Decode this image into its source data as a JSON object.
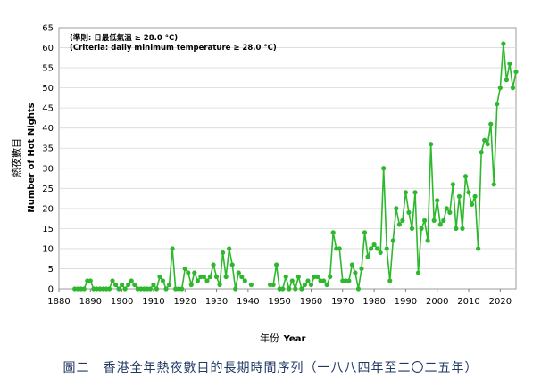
{
  "chart_data": {
    "type": "line",
    "title_zh": "熱夜數目",
    "ylabel": "Number of Hot Nights",
    "xlabel_zh": "年份",
    "xlabel": "Year",
    "xlim": [
      1880,
      2025
    ],
    "ylim": [
      0,
      65
    ],
    "x_ticks": [
      1880,
      1890,
      1900,
      1910,
      1920,
      1930,
      1940,
      1950,
      1960,
      1970,
      1980,
      1990,
      2000,
      2010,
      2020
    ],
    "y_ticks": [
      0,
      5,
      10,
      15,
      20,
      25,
      30,
      35,
      40,
      45,
      50,
      55,
      60,
      65
    ],
    "annotation_zh": "(準則: 日最低氣溫 ≥ 28.0 °C)",
    "annotation_en": "(Criteria: daily minimum temperature ≥ 28.0 °C)",
    "line_color": "#2eb82e",
    "series": [
      {
        "name": "Hot Nights",
        "segments": [
          {
            "x": [
              1885,
              1886,
              1887,
              1888,
              1889,
              1890,
              1891,
              1892,
              1893,
              1894,
              1895,
              1896,
              1897,
              1898,
              1899,
              1900,
              1901,
              1902,
              1903,
              1904,
              1905,
              1906,
              1907,
              1908,
              1909,
              1910,
              1911,
              1912,
              1913,
              1914,
              1915,
              1916,
              1917,
              1918,
              1919,
              1920,
              1921,
              1922,
              1923,
              1924,
              1925,
              1926,
              1927,
              1928,
              1929,
              1930,
              1931,
              1932,
              1933,
              1934,
              1935,
              1936,
              1937,
              1938,
              1939
            ],
            "y": [
              0,
              0,
              0,
              0,
              2,
              2,
              0,
              0,
              0,
              0,
              0,
              0,
              2,
              1,
              0,
              1,
              0,
              1,
              2,
              1,
              0,
              0,
              0,
              0,
              0,
              1,
              0,
              3,
              2,
              0,
              1,
              10,
              0,
              0,
              0,
              5,
              4,
              1,
              4,
              2,
              3,
              3,
              2,
              3,
              6,
              3,
              1,
              9,
              3,
              10,
              6,
              0,
              4,
              3,
              2
            ]
          },
          {
            "x": [
              1941
            ],
            "y": [
              1
            ]
          },
          {
            "x": [
              1947,
              1948,
              1949,
              1950,
              1951,
              1952,
              1953,
              1954,
              1955,
              1956,
              1957,
              1958,
              1959,
              1960,
              1961,
              1962,
              1963,
              1964,
              1965,
              1966,
              1967,
              1968,
              1969,
              1970,
              1971,
              1972,
              1973,
              1974,
              1975,
              1976,
              1977,
              1978,
              1979,
              1980,
              1981,
              1982,
              1983,
              1984,
              1985,
              1986,
              1987,
              1988,
              1989,
              1990,
              1991,
              1992,
              1993,
              1994,
              1995,
              1996,
              1997,
              1998,
              1999,
              2000,
              2001,
              2002,
              2003,
              2004,
              2005,
              2006,
              2007,
              2008,
              2009,
              2010,
              2011,
              2012,
              2013,
              2014,
              2015,
              2016,
              2017,
              2018,
              2019,
              2020,
              2021,
              2022,
              2023,
              2024,
              2025
            ],
            "y": [
              1,
              1,
              6,
              0,
              0,
              3,
              0,
              2,
              0,
              3,
              0,
              1,
              2,
              1,
              3,
              3,
              2,
              2,
              1,
              3,
              14,
              10,
              10,
              2,
              2,
              2,
              6,
              4,
              0,
              5,
              14,
              8,
              10,
              11,
              10,
              9,
              30,
              10,
              2,
              12,
              20,
              16,
              17,
              24,
              19,
              15,
              24,
              4,
              15,
              17,
              12,
              36,
              17,
              22,
              16,
              17,
              20,
              19,
              26,
              15,
              23,
              15,
              28,
              24,
              21,
              23,
              10,
              34,
              37,
              36,
              41,
              26,
              46,
              50,
              61,
              52,
              56,
              50,
              54
            ]
          }
        ]
      }
    ]
  },
  "caption": "圖二　香港全年熱夜數目的長期時間序列（一八八四年至二〇二五年）"
}
